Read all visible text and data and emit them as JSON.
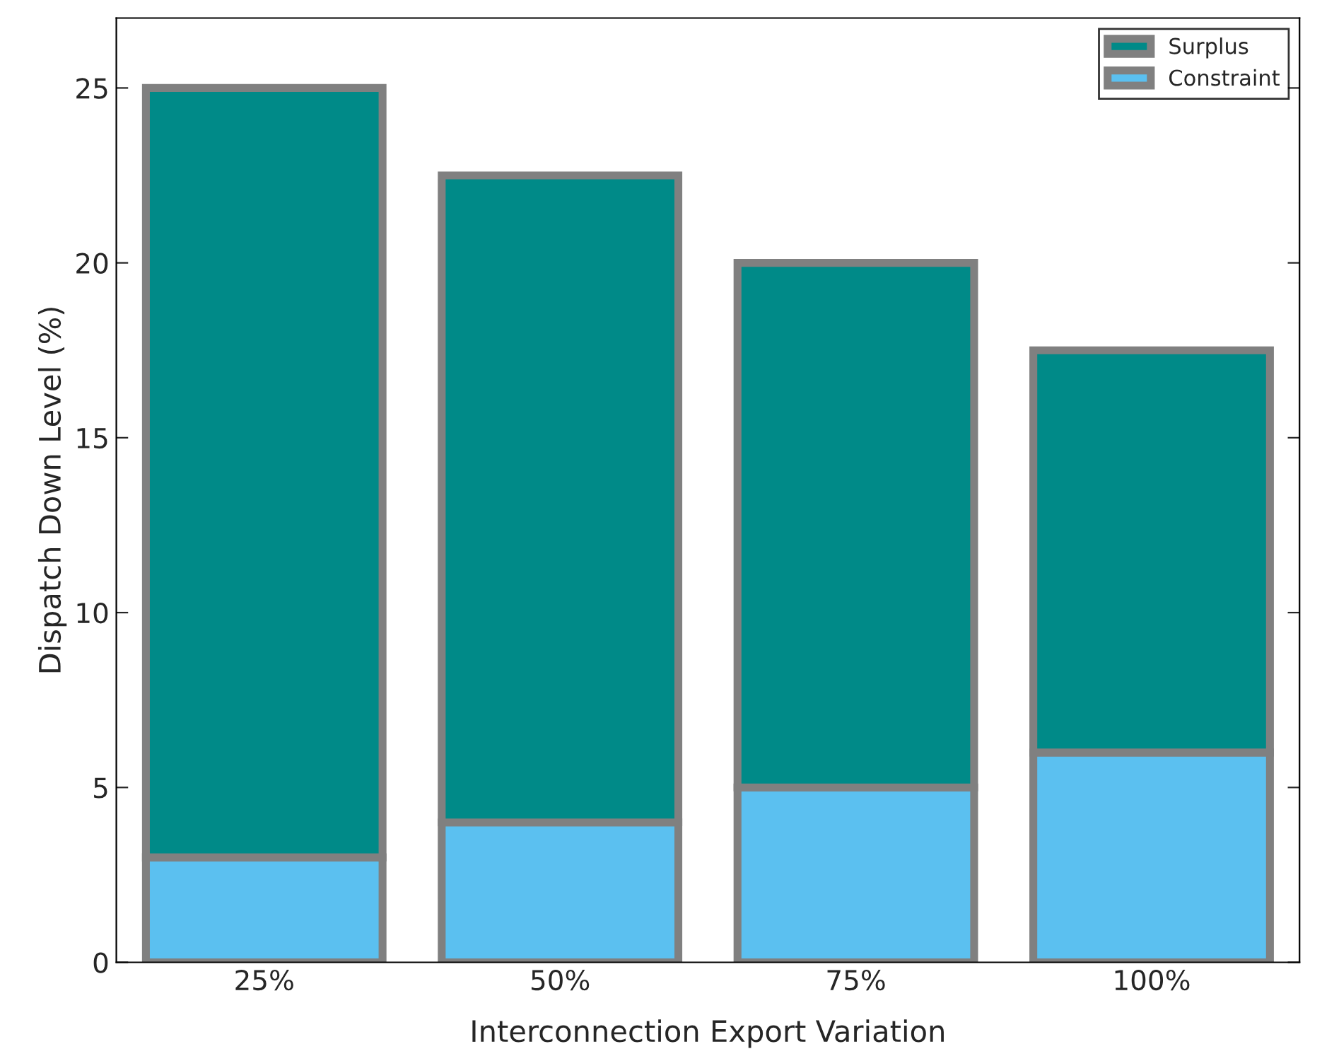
{
  "chart_data": {
    "type": "bar",
    "stacked": true,
    "xlabel": "Interconnection Export Variation",
    "ylabel": "Dispatch Down Level (%)",
    "categories": [
      "25%",
      "50%",
      "75%",
      "100%"
    ],
    "series": [
      {
        "name": "Constraint",
        "color": "#5bc0f0",
        "values": [
          3,
          4,
          5,
          6
        ]
      },
      {
        "name": "Surplus",
        "color": "#008a88",
        "values": [
          22,
          18.5,
          15,
          11.5
        ]
      }
    ],
    "ylim": [
      0,
      27
    ],
    "yticks": [
      0,
      5,
      10,
      15,
      20,
      25
    ],
    "grid": false,
    "legend": "top right"
  }
}
